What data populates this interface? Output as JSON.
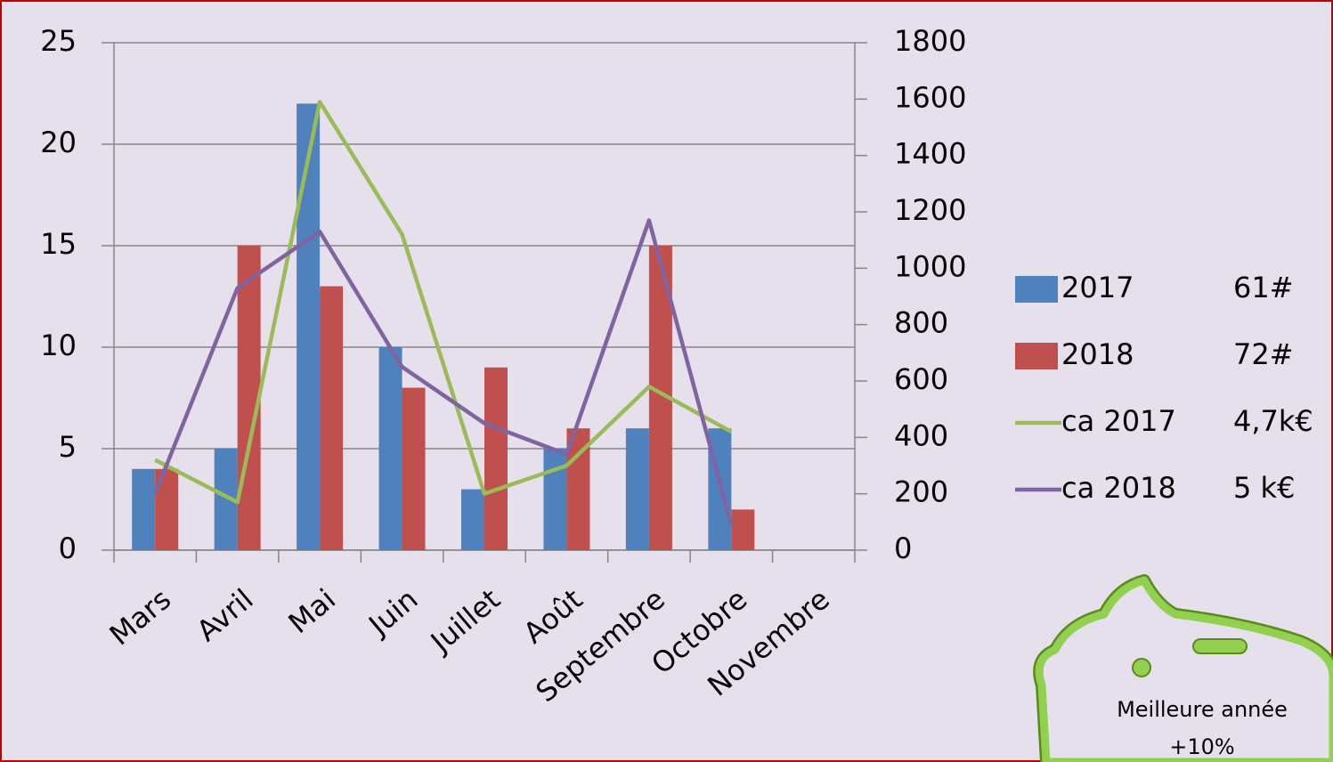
{
  "chart_data": {
    "type": "bar-line",
    "categories": [
      "Mars",
      "Avril",
      "Mai",
      "Juin",
      "Juillet",
      "Août",
      "Septembre",
      "Octobre",
      "Novembre"
    ],
    "series": [
      {
        "name": "2017",
        "note": "61#",
        "type": "bar",
        "color": "#4f81bd",
        "values": [
          4,
          5,
          22,
          10,
          3,
          5,
          6,
          6,
          null
        ]
      },
      {
        "name": "2018",
        "note": "72#",
        "type": "bar",
        "color": "#c0504d",
        "values": [
          4,
          15,
          13,
          8,
          9,
          6,
          15,
          2,
          null
        ]
      },
      {
        "name": "ca 2017",
        "note": "4,7k€",
        "type": "line",
        "axis": "y2",
        "color": "#9bbb59",
        "values": [
          320,
          170,
          1590,
          1120,
          200,
          300,
          580,
          420,
          null
        ]
      },
      {
        "name": "ca 2018",
        "note": "5 k€",
        "type": "line",
        "axis": "y2",
        "color": "#8064a2",
        "values": [
          200,
          930,
          1130,
          650,
          450,
          340,
          1170,
          90,
          null
        ]
      }
    ],
    "ylim": [
      0,
      25
    ],
    "yticks": [
      0,
      5,
      10,
      15,
      20,
      25
    ],
    "y2lim": [
      0,
      1800
    ],
    "y2ticks": [
      0,
      200,
      400,
      600,
      800,
      1000,
      1200,
      1400,
      1600,
      1800
    ],
    "grid": true,
    "annotation": [
      "Meilleure année",
      "+10%"
    ]
  }
}
